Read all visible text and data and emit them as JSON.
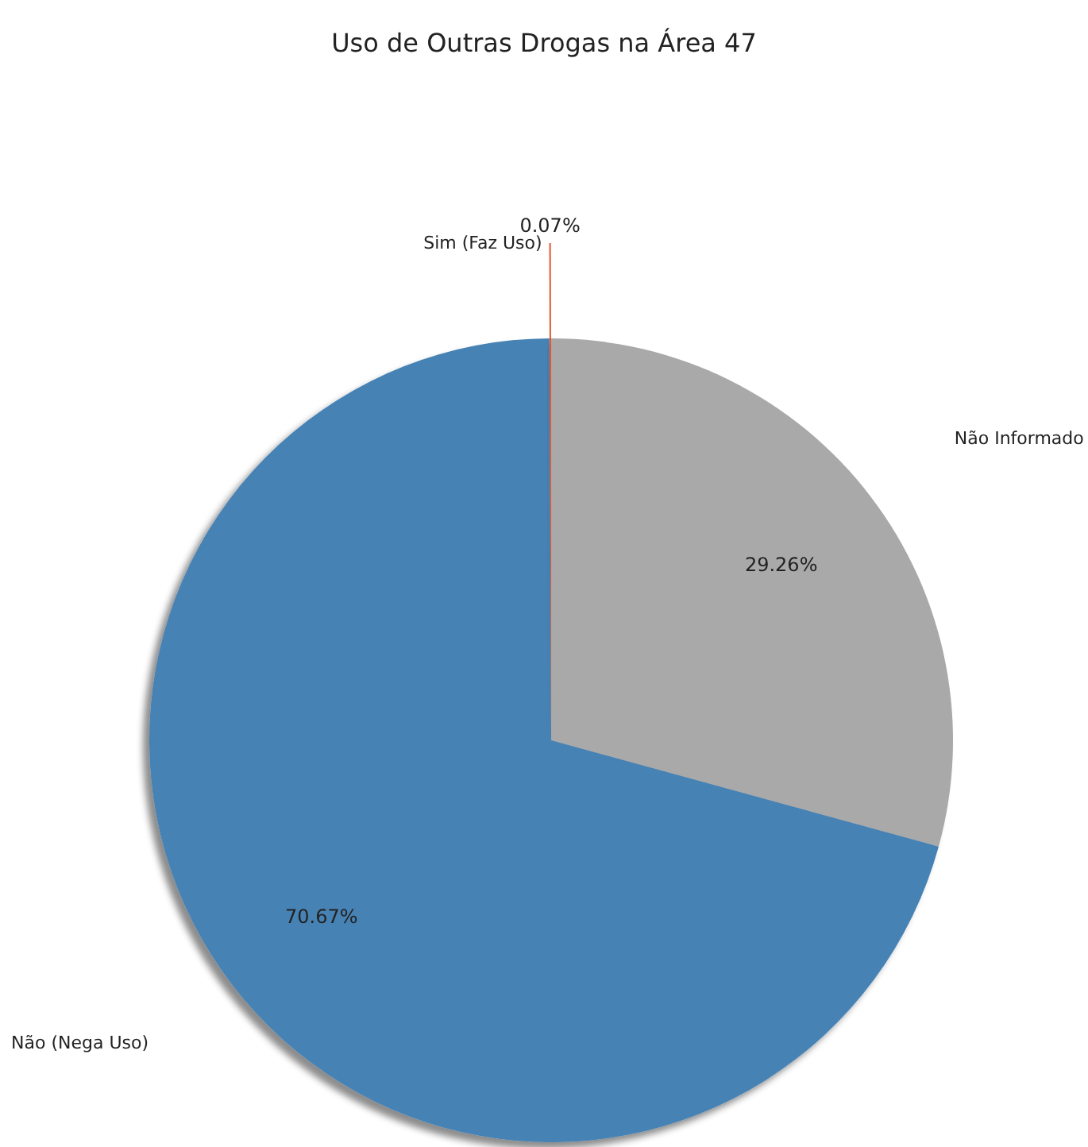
{
  "chart_data": {
    "type": "pie",
    "title": "Uso de Outras Drogas na Área 47",
    "categories": [
      "Não Informado",
      "Não (Nega Uso)",
      "Sim (Faz Uso)"
    ],
    "values": [
      29.26,
      70.67,
      0.07
    ],
    "value_labels": [
      "29.26%",
      "70.67%",
      "0.07%"
    ],
    "colors": [
      "#a9a9a9",
      "#4682b4",
      "#e4572e"
    ],
    "legend": false
  }
}
